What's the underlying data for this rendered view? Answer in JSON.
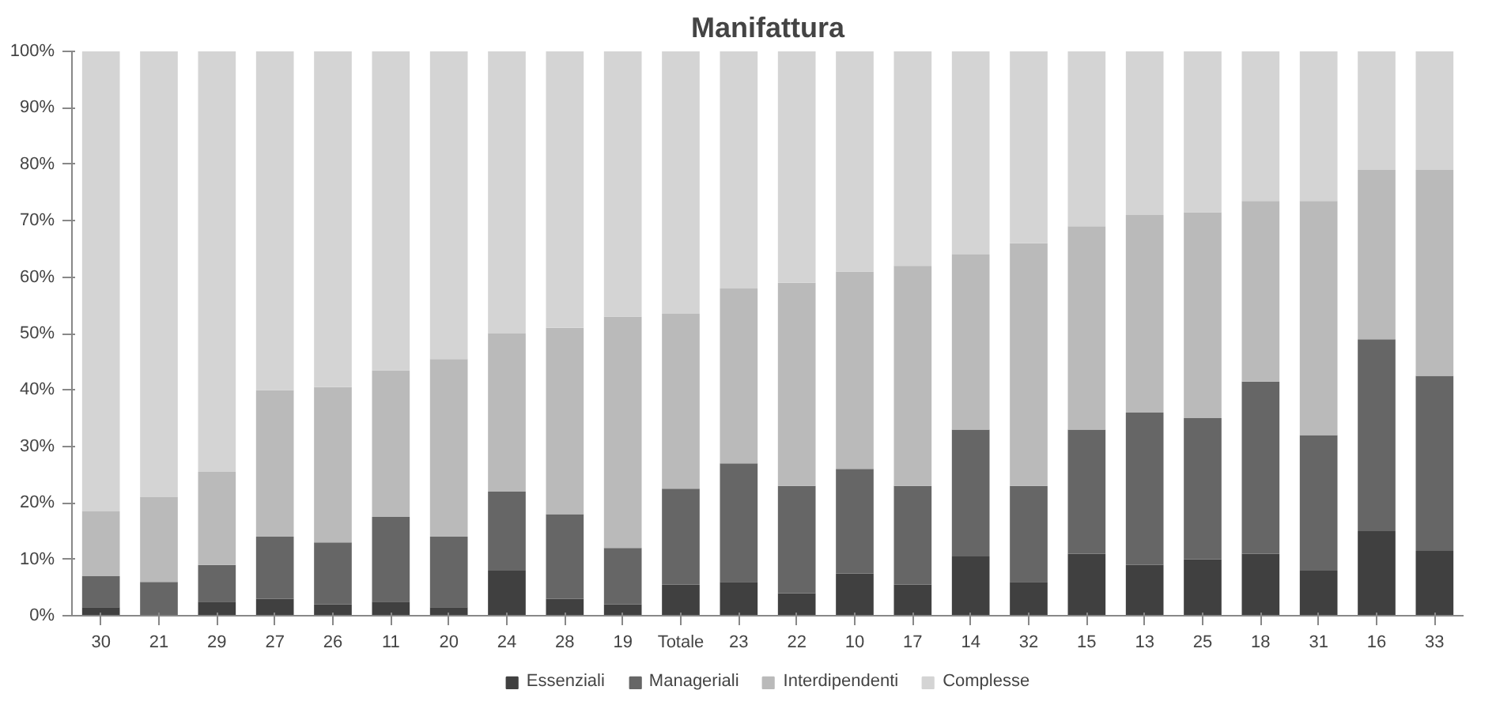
{
  "chart_data": {
    "type": "bar",
    "title": "Manifattura",
    "stacked": true,
    "legend": "bottom",
    "grid": false,
    "categories": [
      "30",
      "21",
      "29",
      "27",
      "26",
      "11",
      "20",
      "24",
      "28",
      "19",
      "Totale",
      "23",
      "22",
      "10",
      "17",
      "14",
      "32",
      "15",
      "13",
      "25",
      "18",
      "31",
      "16",
      "33"
    ],
    "ylim": [
      0,
      100
    ],
    "yticks": [
      {
        "value": 0,
        "label": "0%"
      },
      {
        "value": 10,
        "label": "10%"
      },
      {
        "value": 20,
        "label": "20%"
      },
      {
        "value": 30,
        "label": "30%"
      },
      {
        "value": 40,
        "label": "40%"
      },
      {
        "value": 50,
        "label": "50%"
      },
      {
        "value": 60,
        "label": "60%"
      },
      {
        "value": 70,
        "label": "70%"
      },
      {
        "value": 80,
        "label": "80%"
      },
      {
        "value": 90,
        "label": "90%"
      },
      {
        "value": 100,
        "label": "100%"
      }
    ],
    "series": [
      {
        "name": "Essenziali",
        "color": "#404040",
        "values": [
          1.5,
          0,
          2.5,
          3,
          2,
          2.5,
          1.5,
          8,
          3,
          2,
          5.5,
          6,
          4,
          7.5,
          5.5,
          10.5,
          6,
          11,
          9,
          10,
          11,
          8,
          15,
          11.5
        ]
      },
      {
        "name": "Manageriali",
        "color": "#666666",
        "values": [
          5.5,
          6,
          6.5,
          11,
          11,
          15,
          12.5,
          14,
          15,
          10,
          17,
          21,
          19,
          18.5,
          17.5,
          22.5,
          17,
          22,
          27,
          25,
          30.5,
          24,
          34,
          31
        ]
      },
      {
        "name": "Interdipendenti",
        "color": "#bababa",
        "values": [
          11.5,
          15,
          16.5,
          26,
          27.5,
          26,
          31.5,
          28,
          33,
          41,
          31,
          31,
          36,
          35,
          39,
          31,
          43,
          36,
          35,
          36.5,
          32,
          41.5,
          30,
          36.5
        ]
      },
      {
        "name": "Complesse",
        "color": "#d4d4d4",
        "values": [
          81.5,
          79,
          74.5,
          60,
          59.5,
          56.5,
          54.5,
          50,
          49,
          47,
          46.5,
          42,
          41,
          39,
          38,
          36,
          34,
          31,
          29,
          28.5,
          26.5,
          26.5,
          21,
          21
        ]
      }
    ]
  }
}
